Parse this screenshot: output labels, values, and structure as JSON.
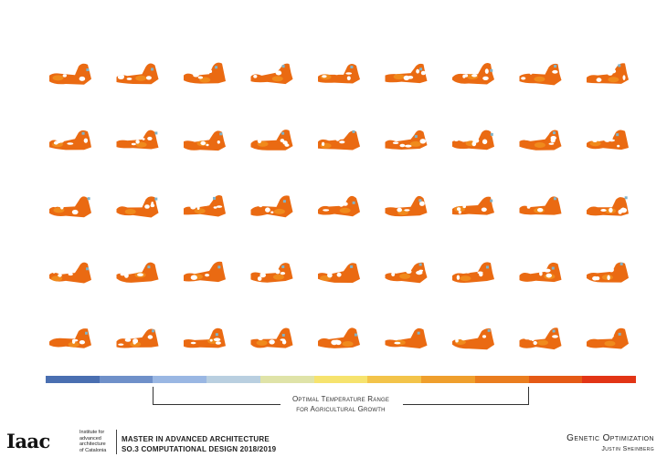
{
  "colors": {
    "scale": [
      "#4a6fb1",
      "#6f90c9",
      "#9ab7e3",
      "#b9cfe0",
      "#dfe3a8",
      "#f6e36e",
      "#f3c44a",
      "#ef9f2d",
      "#ea7d1f",
      "#e55a16",
      "#e23516"
    ],
    "form_base": "#ea6a12",
    "form_hot": "#f08a1c",
    "form_cool": "#7fb3c9",
    "hole": "#ffffff"
  },
  "grid": {
    "rows": 5,
    "cols": 9
  },
  "legend": {
    "range_label_line1": "Optimal Temperature Range",
    "range_label_line2": "for Agricultural Growth"
  },
  "footer": {
    "logo": "Iaac",
    "institute_lines": [
      "Institute for",
      "advanced",
      "architecture",
      "of Catalonia"
    ],
    "program_line1": "MASTER IN ADVANCED ARCHITECTURE",
    "program_line2": "SO.3 COMPUTATIONAL DESIGN 2018/2019",
    "project_title": "Genetic Optimization",
    "author": "Justin Sheinberg"
  }
}
